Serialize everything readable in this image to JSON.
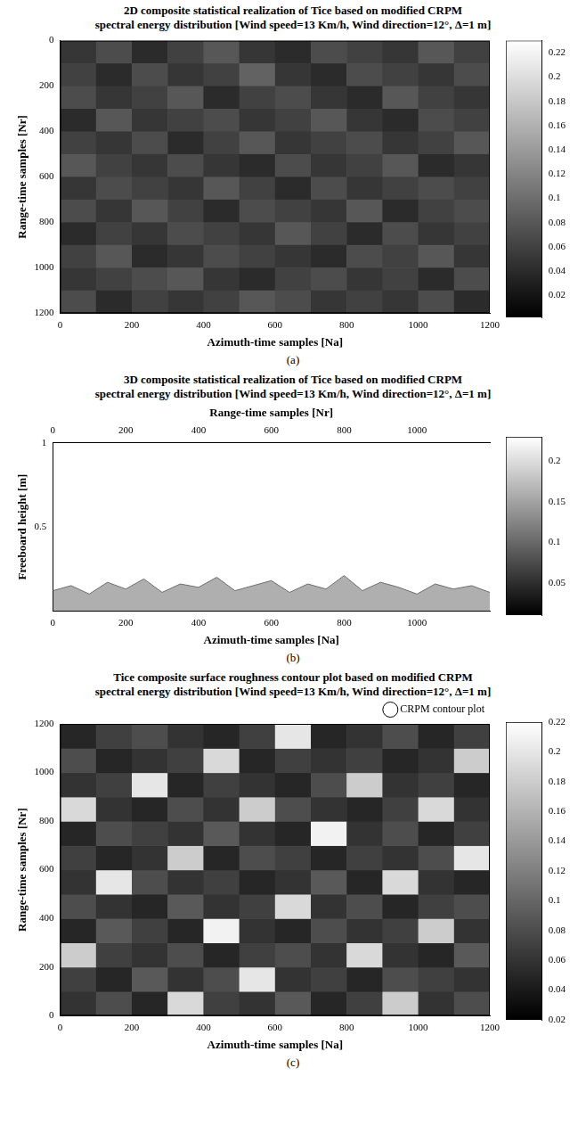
{
  "chart_data": [
    {
      "type": "heatmap",
      "title": "2D composite statistical realization of Tice based on modified CRPM",
      "subtitle": "spectral energy distribution [Wind speed=13 Km/h, Wind direction=12°, Δ=1 m]",
      "caption": "(a)",
      "xlabel": "Azimuth-time samples [Na]",
      "ylabel": "Range-time samples [Nr]",
      "xlim": [
        0,
        1200
      ],
      "xticks": [
        0,
        200,
        400,
        600,
        800,
        1000,
        1200
      ],
      "ylim": [
        0,
        1200
      ],
      "yticks": [
        0,
        200,
        400,
        600,
        800,
        1000,
        1200
      ],
      "y_reversed": true,
      "grid": false,
      "x": [
        50,
        150,
        250,
        350,
        450,
        550,
        650,
        750,
        850,
        950,
        1050,
        1150
      ],
      "y": [
        50,
        150,
        250,
        350,
        450,
        550,
        650,
        750,
        850,
        950,
        1050,
        1150
      ],
      "cells": [
        [
          0.05,
          0.07,
          0.04,
          0.06,
          0.08,
          0.05,
          0.04,
          0.07,
          0.06,
          0.05,
          0.08,
          0.06
        ],
        [
          0.06,
          0.04,
          0.07,
          0.05,
          0.06,
          0.09,
          0.05,
          0.04,
          0.07,
          0.06,
          0.05,
          0.07
        ],
        [
          0.07,
          0.05,
          0.06,
          0.08,
          0.04,
          0.06,
          0.07,
          0.05,
          0.04,
          0.08,
          0.06,
          0.05
        ],
        [
          0.04,
          0.08,
          0.05,
          0.06,
          0.07,
          0.05,
          0.06,
          0.08,
          0.05,
          0.04,
          0.07,
          0.06
        ],
        [
          0.06,
          0.05,
          0.07,
          0.04,
          0.06,
          0.08,
          0.05,
          0.06,
          0.07,
          0.05,
          0.06,
          0.08
        ],
        [
          0.08,
          0.06,
          0.05,
          0.07,
          0.05,
          0.04,
          0.07,
          0.05,
          0.06,
          0.08,
          0.04,
          0.05
        ],
        [
          0.05,
          0.07,
          0.06,
          0.05,
          0.08,
          0.06,
          0.04,
          0.07,
          0.05,
          0.06,
          0.07,
          0.06
        ],
        [
          0.07,
          0.05,
          0.08,
          0.06,
          0.04,
          0.07,
          0.06,
          0.05,
          0.08,
          0.04,
          0.06,
          0.07
        ],
        [
          0.04,
          0.06,
          0.05,
          0.07,
          0.06,
          0.05,
          0.08,
          0.06,
          0.04,
          0.07,
          0.05,
          0.06
        ],
        [
          0.06,
          0.08,
          0.04,
          0.05,
          0.07,
          0.06,
          0.05,
          0.04,
          0.07,
          0.06,
          0.08,
          0.05
        ],
        [
          0.05,
          0.06,
          0.07,
          0.08,
          0.05,
          0.04,
          0.06,
          0.07,
          0.05,
          0.06,
          0.04,
          0.07
        ],
        [
          0.07,
          0.04,
          0.06,
          0.05,
          0.06,
          0.08,
          0.07,
          0.05,
          0.06,
          0.05,
          0.07,
          0.04
        ]
      ],
      "colorbar": {
        "range": [
          0.002,
          0.23
        ],
        "ticks": [
          0.02,
          0.04,
          0.06,
          0.08,
          0.1,
          0.12,
          0.14,
          0.16,
          0.18,
          0.2,
          0.22
        ]
      }
    },
    {
      "type": "line",
      "title": "3D composite statistical realization of Tice based on modified CRPM",
      "subtitle": "spectral energy distribution [Wind speed=13 Km/h, Wind direction=12°, Δ=1 m]",
      "caption": "(b)",
      "xlabel": "Azimuth-time samples [Na]",
      "ylabel": "Freeboard height [m]",
      "xlim": [
        0,
        1200
      ],
      "xticks": [
        0,
        200,
        400,
        600,
        800,
        1000
      ],
      "ylim": [
        0,
        1
      ],
      "yticks": [
        0.5,
        1
      ],
      "range_axis": {
        "label": "Range-time samples [Nr]",
        "lim": [
          0,
          1200
        ],
        "ticks": [
          0,
          200,
          400,
          600,
          800,
          1000
        ]
      },
      "grid": false,
      "x": [
        0,
        50,
        100,
        150,
        200,
        250,
        300,
        350,
        400,
        450,
        500,
        550,
        600,
        650,
        700,
        750,
        800,
        850,
        900,
        950,
        1000,
        1050,
        1100,
        1150,
        1200
      ],
      "series": [
        {
          "name": "Freeboard height",
          "color": "#6e6e6e",
          "marker": "none",
          "line_style": "solid",
          "values": [
            0.12,
            0.15,
            0.1,
            0.17,
            0.13,
            0.19,
            0.11,
            0.16,
            0.14,
            0.2,
            0.12,
            0.15,
            0.18,
            0.11,
            0.16,
            0.13,
            0.21,
            0.12,
            0.17,
            0.14,
            0.1,
            0.16,
            0.13,
            0.15,
            0.11
          ]
        }
      ],
      "colorbar": {
        "range": [
          0.01,
          0.23
        ],
        "ticks": [
          0.05,
          0.1,
          0.15,
          0.2
        ]
      }
    },
    {
      "type": "heatmap",
      "title": "Tice composite surface roughness contour plot based on modified CRPM",
      "subtitle": "spectral energy distribution [Wind speed=13 Km/h, Wind direction=12°, Δ=1 m]",
      "caption": "(c)",
      "xlabel": "Azimuth-time samples [Na]",
      "ylabel": "Range-time samples [Nr]",
      "xlim": [
        0,
        1200
      ],
      "xticks": [
        0,
        200,
        400,
        600,
        800,
        1000,
        1200
      ],
      "ylim": [
        0,
        1200
      ],
      "yticks": [
        0,
        200,
        400,
        600,
        800,
        1000,
        1200
      ],
      "y_reversed": false,
      "grid": false,
      "legend": "top right",
      "series": [
        {
          "name": "CRPM contour plot",
          "color": "#ffffff",
          "marker": "ellipse"
        }
      ],
      "x": [
        50,
        150,
        250,
        350,
        450,
        550,
        650,
        750,
        850,
        950,
        1050,
        1150
      ],
      "y": [
        50,
        150,
        250,
        350,
        450,
        550,
        650,
        750,
        850,
        950,
        1050,
        1150
      ],
      "cells": [
        [
          0.06,
          0.08,
          0.05,
          0.19,
          0.07,
          0.06,
          0.09,
          0.05,
          0.07,
          0.18,
          0.06,
          0.08
        ],
        [
          0.07,
          0.05,
          0.09,
          0.06,
          0.08,
          0.2,
          0.06,
          0.07,
          0.05,
          0.08,
          0.07,
          0.06
        ],
        [
          0.18,
          0.07,
          0.06,
          0.08,
          0.05,
          0.07,
          0.08,
          0.06,
          0.19,
          0.06,
          0.05,
          0.09
        ],
        [
          0.05,
          0.09,
          0.07,
          0.05,
          0.21,
          0.06,
          0.05,
          0.08,
          0.06,
          0.07,
          0.18,
          0.06
        ],
        [
          0.08,
          0.06,
          0.05,
          0.09,
          0.06,
          0.07,
          0.19,
          0.06,
          0.08,
          0.05,
          0.07,
          0.08
        ],
        [
          0.06,
          0.2,
          0.08,
          0.06,
          0.07,
          0.05,
          0.06,
          0.09,
          0.05,
          0.19,
          0.06,
          0.05
        ],
        [
          0.07,
          0.05,
          0.06,
          0.18,
          0.05,
          0.08,
          0.07,
          0.05,
          0.07,
          0.06,
          0.08,
          0.2
        ],
        [
          0.05,
          0.08,
          0.07,
          0.06,
          0.09,
          0.06,
          0.05,
          0.21,
          0.06,
          0.08,
          0.05,
          0.07
        ],
        [
          0.19,
          0.06,
          0.05,
          0.08,
          0.06,
          0.18,
          0.08,
          0.06,
          0.05,
          0.07,
          0.19,
          0.06
        ],
        [
          0.06,
          0.07,
          0.2,
          0.05,
          0.07,
          0.06,
          0.05,
          0.08,
          0.18,
          0.06,
          0.07,
          0.05
        ],
        [
          0.08,
          0.05,
          0.06,
          0.07,
          0.19,
          0.05,
          0.07,
          0.06,
          0.07,
          0.05,
          0.06,
          0.18
        ],
        [
          0.05,
          0.07,
          0.08,
          0.06,
          0.05,
          0.07,
          0.2,
          0.05,
          0.06,
          0.08,
          0.05,
          0.07
        ]
      ],
      "colorbar": {
        "range": [
          0.02,
          0.22
        ],
        "ticks": [
          0.02,
          0.04,
          0.06,
          0.08,
          0.1,
          0.12,
          0.14,
          0.16,
          0.18,
          0.2,
          0.22
        ]
      }
    }
  ]
}
